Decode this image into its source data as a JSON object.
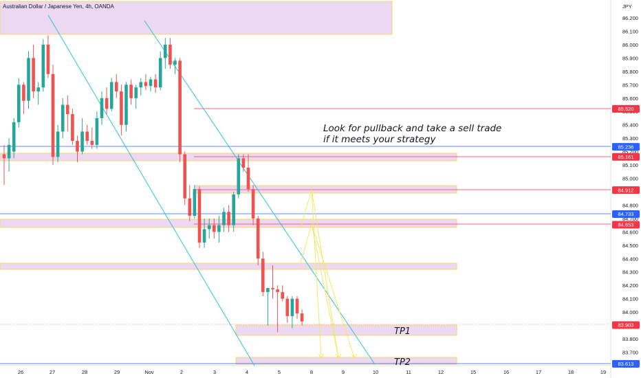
{
  "header": {
    "title": "Australian Dollar / Japanese Yen, 4h, OANDA",
    "currency": "JPY"
  },
  "chart_data": {
    "type": "candlestick",
    "yticks": [
      "86.200",
      "86.100",
      "86.000",
      "85.900",
      "85.800",
      "85.700",
      "85.600",
      "85.500",
      "85.400",
      "85.300",
      "85.200",
      "85.100",
      "85.000",
      "84.900",
      "84.800",
      "84.700",
      "84.600",
      "84.500",
      "84.400",
      "84.300",
      "84.200",
      "84.100",
      "84.000",
      "83.900",
      "83.800",
      "83.700",
      "83.600"
    ],
    "xticks": [
      "26",
      "27",
      "28",
      "29",
      "Nov",
      "2",
      "3",
      "4",
      "5",
      "8",
      "9",
      "10",
      "11",
      "12",
      "15",
      "16",
      "17",
      "18",
      "19"
    ],
    "price_badges": [
      {
        "value": "85.520",
        "color": "#f23645"
      },
      {
        "value": "85.236",
        "color": "#2962ff"
      },
      {
        "value": "85.161",
        "color": "#f23645"
      },
      {
        "value": "84.912",
        "color": "#f23645"
      },
      {
        "value": "84.733",
        "color": "#2962ff"
      },
      {
        "value": "84.653",
        "color": "#f23645"
      },
      {
        "value": "83.903",
        "color": "#f23645"
      },
      {
        "value": "83.613",
        "color": "#2962ff"
      }
    ],
    "candles": [
      {
        "o": 85.18,
        "h": 85.25,
        "l": 84.95,
        "c": 85.15
      },
      {
        "o": 85.15,
        "h": 85.3,
        "l": 85.05,
        "c": 85.25
      },
      {
        "o": 85.2,
        "h": 85.45,
        "l": 85.15,
        "c": 85.42
      },
      {
        "o": 85.42,
        "h": 85.75,
        "l": 85.38,
        "c": 85.7
      },
      {
        "o": 85.7,
        "h": 85.72,
        "l": 85.48,
        "c": 85.58
      },
      {
        "o": 85.58,
        "h": 85.95,
        "l": 85.52,
        "c": 85.9
      },
      {
        "o": 85.9,
        "h": 86.0,
        "l": 85.6,
        "c": 85.65
      },
      {
        "o": 85.65,
        "h": 85.72,
        "l": 85.55,
        "c": 85.68
      },
      {
        "o": 85.68,
        "h": 86.04,
        "l": 85.65,
        "c": 86.0
      },
      {
        "o": 86.0,
        "h": 86.07,
        "l": 85.75,
        "c": 85.78
      },
      {
        "o": 85.78,
        "h": 85.85,
        "l": 85.1,
        "c": 85.16
      },
      {
        "o": 85.16,
        "h": 85.4,
        "l": 85.12,
        "c": 85.35
      },
      {
        "o": 85.35,
        "h": 85.6,
        "l": 85.3,
        "c": 85.55
      },
      {
        "o": 85.55,
        "h": 85.62,
        "l": 85.35,
        "c": 85.48
      },
      {
        "o": 85.48,
        "h": 85.52,
        "l": 85.25,
        "c": 85.28
      },
      {
        "o": 85.28,
        "h": 85.32,
        "l": 85.12,
        "c": 85.2
      },
      {
        "o": 85.2,
        "h": 85.45,
        "l": 85.18,
        "c": 85.35
      },
      {
        "o": 85.35,
        "h": 85.4,
        "l": 85.25,
        "c": 85.28
      },
      {
        "o": 85.28,
        "h": 85.38,
        "l": 85.22,
        "c": 85.25
      },
      {
        "o": 85.25,
        "h": 85.5,
        "l": 85.22,
        "c": 85.45
      },
      {
        "o": 85.45,
        "h": 85.65,
        "l": 85.4,
        "c": 85.6
      },
      {
        "o": 85.6,
        "h": 85.68,
        "l": 85.48,
        "c": 85.52
      },
      {
        "o": 85.52,
        "h": 85.75,
        "l": 85.5,
        "c": 85.72
      },
      {
        "o": 85.72,
        "h": 85.78,
        "l": 85.6,
        "c": 85.65
      },
      {
        "o": 85.65,
        "h": 85.7,
        "l": 85.32,
        "c": 85.4
      },
      {
        "o": 85.4,
        "h": 85.72,
        "l": 85.35,
        "c": 85.7
      },
      {
        "o": 85.7,
        "h": 85.74,
        "l": 85.55,
        "c": 85.6
      },
      {
        "o": 85.6,
        "h": 85.7,
        "l": 85.52,
        "c": 85.68
      },
      {
        "o": 85.68,
        "h": 85.75,
        "l": 85.62,
        "c": 85.72
      },
      {
        "o": 85.72,
        "h": 85.78,
        "l": 85.66,
        "c": 85.69
      },
      {
        "o": 85.69,
        "h": 85.76,
        "l": 85.65,
        "c": 85.74
      },
      {
        "o": 85.74,
        "h": 85.78,
        "l": 85.64,
        "c": 85.68
      },
      {
        "o": 85.68,
        "h": 85.95,
        "l": 85.66,
        "c": 85.9
      },
      {
        "o": 85.9,
        "h": 86.05,
        "l": 85.82,
        "c": 86.0
      },
      {
        "o": 86.0,
        "h": 86.05,
        "l": 85.82,
        "c": 85.85
      },
      {
        "o": 85.85,
        "h": 85.9,
        "l": 85.78,
        "c": 85.88
      },
      {
        "o": 85.88,
        "h": 85.9,
        "l": 85.12,
        "c": 85.18
      },
      {
        "o": 85.18,
        "h": 85.2,
        "l": 84.8,
        "c": 84.85
      },
      {
        "o": 84.85,
        "h": 84.95,
        "l": 84.68,
        "c": 84.72
      },
      {
        "o": 84.72,
        "h": 84.95,
        "l": 84.7,
        "c": 84.92
      },
      {
        "o": 84.92,
        "h": 84.94,
        "l": 84.48,
        "c": 84.52
      },
      {
        "o": 84.52,
        "h": 84.7,
        "l": 84.48,
        "c": 84.62
      },
      {
        "o": 84.62,
        "h": 84.7,
        "l": 84.55,
        "c": 84.65
      },
      {
        "o": 84.65,
        "h": 84.7,
        "l": 84.55,
        "c": 84.6
      },
      {
        "o": 84.6,
        "h": 84.72,
        "l": 84.52,
        "c": 84.65
      },
      {
        "o": 84.65,
        "h": 84.78,
        "l": 84.6,
        "c": 84.75
      },
      {
        "o": 84.75,
        "h": 84.8,
        "l": 84.6,
        "c": 84.65
      },
      {
        "o": 84.65,
        "h": 84.9,
        "l": 84.6,
        "c": 84.88
      },
      {
        "o": 84.88,
        "h": 85.18,
        "l": 84.85,
        "c": 85.15
      },
      {
        "o": 85.15,
        "h": 85.18,
        "l": 85.05,
        "c": 85.08
      },
      {
        "o": 85.08,
        "h": 85.18,
        "l": 84.9,
        "c": 84.92
      },
      {
        "o": 84.92,
        "h": 84.95,
        "l": 84.65,
        "c": 84.7
      },
      {
        "o": 84.7,
        "h": 84.72,
        "l": 84.35,
        "c": 84.4
      },
      {
        "o": 84.4,
        "h": 84.45,
        "l": 84.12,
        "c": 84.15
      },
      {
        "o": 84.15,
        "h": 84.18,
        "l": 83.9,
        "c": 84.18
      },
      {
        "o": 84.18,
        "h": 84.35,
        "l": 84.1,
        "c": 84.17
      },
      {
        "o": 84.17,
        "h": 84.2,
        "l": 83.85,
        "c": 84.15
      },
      {
        "o": 84.15,
        "h": 84.2,
        "l": 84.08,
        "c": 84.1
      },
      {
        "o": 84.1,
        "h": 84.12,
        "l": 83.92,
        "c": 83.97
      },
      {
        "o": 83.97,
        "h": 84.12,
        "l": 83.88,
        "c": 84.1
      },
      {
        "o": 84.1,
        "h": 84.12,
        "l": 83.95,
        "c": 83.99
      },
      {
        "o": 83.99,
        "h": 84.02,
        "l": 83.9,
        "c": 83.93
      }
    ]
  },
  "annotations": {
    "note_line1": "Look for pullback and take a sell trade",
    "note_line2": "if it meets your strategy",
    "tp1": "TP1",
    "tp2": "TP2"
  }
}
